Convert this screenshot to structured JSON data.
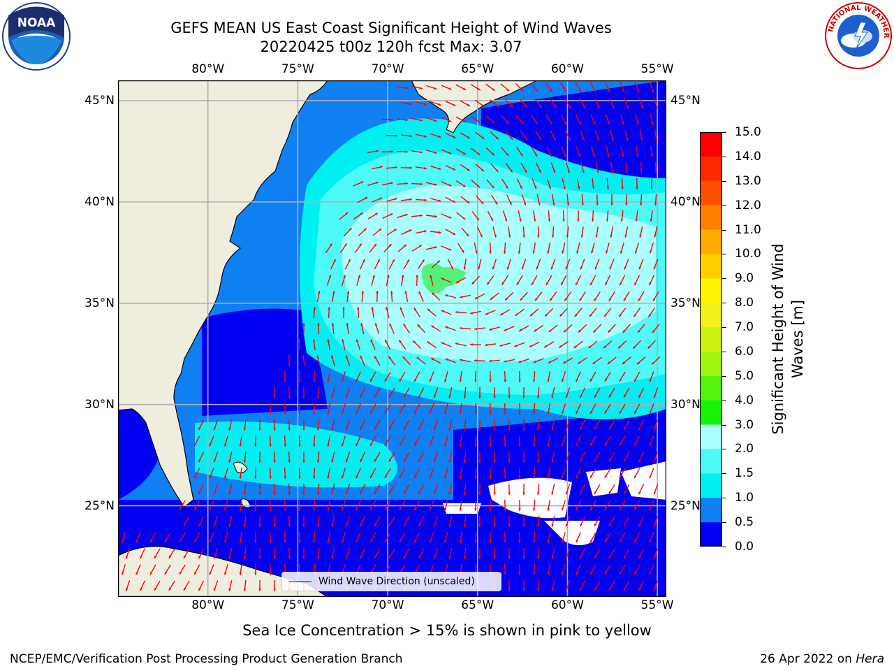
{
  "title": {
    "line1": "GEFS MEAN US East Coast Significant Height of Wind Waves",
    "line2": "20220425 t00z 120h fcst   Max: 3.07"
  },
  "map": {
    "lon_labels": [
      "80°W",
      "75°W",
      "70°W",
      "65°W",
      "60°W",
      "55°W"
    ],
    "lat_labels": [
      "45°N",
      "40°N",
      "35°N",
      "30°N",
      "25°N"
    ],
    "lon_range": [
      -85,
      -54.5
    ],
    "lat_range": [
      20.5,
      46
    ],
    "max_value": 3.07,
    "colors": {
      "land": "#efedde",
      "ocean_0_05": "#0000f2",
      "ocean_05_1": "#0f80f2",
      "ocean_1_15": "#00f0f2",
      "ocean_15_2": "#4dfaf6",
      "ocean_2_3": "#a8fffb",
      "ocean_3_4": "#55f179",
      "arrows": "#ff0000",
      "no_data": "#ffffff",
      "grid": "#b0b0b0"
    }
  },
  "legend": {
    "label": "Wind Wave Direction (unscaled)"
  },
  "colorbar": {
    "title_line1": "Significant Height of Wind",
    "title_line2": "Waves [m]",
    "ticks": [
      "15.0",
      "14.0",
      "13.0",
      "12.0",
      "11.0",
      "10.0",
      "9.0",
      "8.0",
      "7.0",
      "6.0",
      "5.0",
      "4.0",
      "3.0",
      "2.0",
      "1.5",
      "1.0",
      "0.5",
      "0.0"
    ],
    "colors_bottom_to_top": [
      "#0000f2",
      "#0f80f2",
      "#00f0f2",
      "#4dfaf6",
      "#a8fffb",
      "#55f179",
      "#12d811",
      "#19f20b",
      "#55f40f",
      "#a0f60f",
      "#ccf00f",
      "#f2f21a",
      "#fff500",
      "#ffd000",
      "#ffab00",
      "#ff8000",
      "#ff5000",
      "#ff2a00",
      "#ff0000"
    ]
  },
  "footer": {
    "note": "Sea Ice Concentration > 15% is shown in pink to yellow",
    "credit": "NCEP/EMC/Verification Post Processing Product Generation Branch",
    "date_prefix": "26 Apr 2022 on ",
    "machine": "Hera"
  },
  "logos": {
    "left": {
      "text": "NOAA",
      "icon": "noaa-logo"
    },
    "right": {
      "text": "NATIONAL WEATHER SERVICE",
      "icon": "nws-logo"
    }
  }
}
